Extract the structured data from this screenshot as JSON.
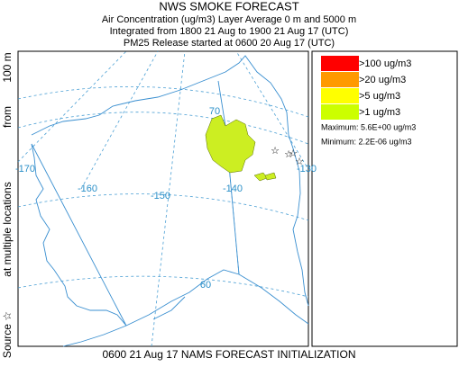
{
  "header": {
    "title": "NWS SMOKE FORECAST",
    "lines": [
      "Air Concentration (ug/m3) Layer Average    0 m and  5000 m",
      "Integrated from 1800 21 Aug to 1900 21 Aug 17 (UTC)",
      "PM25 Release started at 0600 20 Aug 17 (UTC)"
    ]
  },
  "side_label": [
    "Source ☆",
    "at multiple locations",
    "from",
    "100 m"
  ],
  "map": {
    "labels": [
      "-170",
      "-160",
      "-150",
      "-140",
      "-130",
      "70",
      "60"
    ],
    "plume_color": "#ccee22"
  },
  "legend": {
    "items": [
      {
        "label": ">100 ug/m3",
        "color": "#ff0000"
      },
      {
        "label": ">20 ug/m3",
        "color": "#ff9900"
      },
      {
        "label": ">5 ug/m3",
        "color": "#ffff00"
      },
      {
        "label": ">1 ug/m3",
        "color": "#ccff00"
      }
    ],
    "maximum": "Maximum: 5.6E+00 ug/m3",
    "minimum": "Minimum: 2.2E-06 ug/m3"
  },
  "footer": "0600 21 Aug 17 NAMS FORECAST INITIALIZATION"
}
